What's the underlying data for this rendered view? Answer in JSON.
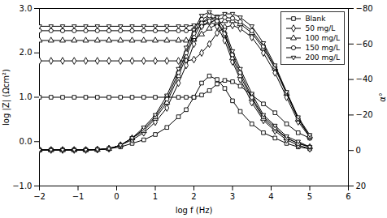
{
  "chart_data": {
    "type": "line",
    "xlabel": "log f (Hz)",
    "ylabel": "log |Z| (Ωcm²)",
    "y2label": "α°",
    "xlim": [
      -2,
      6
    ],
    "ylim": [
      -1,
      3
    ],
    "y2lim": [
      20,
      -80
    ],
    "xticks": [
      -2,
      -1,
      0,
      1,
      2,
      3,
      4,
      5,
      6
    ],
    "yticks": [
      -1,
      0,
      1,
      2,
      3
    ],
    "y2ticks": [
      20,
      0,
      -20,
      -40,
      -60,
      -80
    ],
    "grid": false,
    "legend": "upper right",
    "x": [
      -2,
      -1.7,
      -1.4,
      -1.1,
      -0.8,
      -0.5,
      -0.2,
      0.1,
      0.4,
      0.7,
      1.0,
      1.3,
      1.6,
      1.8,
      2.0,
      2.2,
      2.4,
      2.6,
      2.8,
      3.0,
      3.2,
      3.5,
      3.8,
      4.1,
      4.4,
      4.7,
      5.0
    ],
    "series": [
      {
        "name": "Blank",
        "color": "black",
        "marker": "square",
        "values": [
          1.0,
          1.0,
          1.0,
          1.0,
          1.0,
          1.0,
          1.0,
          1.0,
          1.0,
          1.0,
          1.0,
          1.0,
          1.0,
          1.0,
          1.0,
          1.05,
          1.15,
          1.3,
          1.38,
          1.35,
          1.25,
          1.05,
          0.85,
          0.65,
          0.4,
          0.2,
          0.08
        ]
      },
      {
        "name": "50 mg/L",
        "color": "black",
        "marker": "diamond",
        "values": [
          1.82,
          1.82,
          1.82,
          1.82,
          1.82,
          1.82,
          1.82,
          1.82,
          1.82,
          1.82,
          1.82,
          1.82,
          1.82,
          1.82,
          1.85,
          2.0,
          2.2,
          2.45,
          2.58,
          2.62,
          2.55,
          2.35,
          2.0,
          1.55,
          1.0,
          0.45,
          0.1
        ]
      },
      {
        "name": "100 mg/L",
        "color": "black",
        "marker": "triangle",
        "values": [
          2.28,
          2.28,
          2.28,
          2.28,
          2.28,
          2.28,
          2.28,
          2.28,
          2.28,
          2.28,
          2.28,
          2.28,
          2.28,
          2.28,
          2.3,
          2.42,
          2.55,
          2.65,
          2.72,
          2.72,
          2.65,
          2.45,
          2.1,
          1.65,
          1.08,
          0.5,
          0.12
        ]
      },
      {
        "name": "150 mg/L",
        "color": "black",
        "marker": "circle",
        "values": [
          2.5,
          2.5,
          2.5,
          2.5,
          2.5,
          2.5,
          2.5,
          2.5,
          2.5,
          2.5,
          2.5,
          2.5,
          2.5,
          2.5,
          2.52,
          2.6,
          2.68,
          2.75,
          2.8,
          2.78,
          2.7,
          2.5,
          2.15,
          1.68,
          1.1,
          0.52,
          0.12
        ]
      },
      {
        "name": "200 mg/L",
        "color": "black",
        "marker": "triangle-down",
        "values": [
          2.6,
          2.6,
          2.6,
          2.6,
          2.6,
          2.6,
          2.6,
          2.6,
          2.6,
          2.6,
          2.6,
          2.6,
          2.6,
          2.6,
          2.62,
          2.68,
          2.75,
          2.82,
          2.88,
          2.88,
          2.8,
          2.6,
          2.22,
          1.72,
          1.12,
          0.55,
          0.15
        ]
      },
      {
        "name": "Blank",
        "axis": "y2",
        "color": "black",
        "marker": "square",
        "values": [
          -0.3,
          -0.3,
          -0.3,
          -0.3,
          -0.3,
          -0.5,
          -1,
          -2,
          -4,
          -6,
          -9,
          -13,
          -19,
          -23,
          -30,
          -38,
          -42,
          -40,
          -35,
          -28,
          -22,
          -15,
          -10,
          -7,
          -4,
          -2,
          -1
        ]
      },
      {
        "name": "50 mg/L",
        "axis": "y2",
        "color": "black",
        "marker": "diamond",
        "values": [
          -0.3,
          -0.3,
          -0.3,
          -0.3,
          -0.3,
          -0.5,
          -1,
          -3,
          -6,
          -10,
          -16,
          -24,
          -38,
          -48,
          -60,
          -70,
          -73,
          -70,
          -62,
          -50,
          -40,
          -27,
          -17,
          -11,
          -6,
          -3,
          -1
        ]
      },
      {
        "name": "100 mg/L",
        "axis": "y2",
        "color": "black",
        "marker": "triangle",
        "values": [
          -0.3,
          -0.3,
          -0.3,
          -0.3,
          -0.3,
          -0.5,
          -1,
          -3,
          -7,
          -11,
          -18,
          -27,
          -42,
          -53,
          -64,
          -72,
          -75,
          -72,
          -65,
          -52,
          -42,
          -29,
          -18,
          -12,
          -7,
          -4,
          -2
        ]
      },
      {
        "name": "150 mg/L",
        "axis": "y2",
        "color": "black",
        "marker": "circle",
        "values": [
          -0.3,
          -0.3,
          -0.3,
          -0.3,
          -0.3,
          -0.5,
          -1,
          -3,
          -7,
          -12,
          -19,
          -29,
          -44,
          -55,
          -66,
          -74,
          -76,
          -73,
          -66,
          -54,
          -44,
          -30,
          -19,
          -13,
          -7,
          -4,
          -2
        ]
      },
      {
        "name": "200 mg/L",
        "axis": "y2",
        "color": "black",
        "marker": "triangle-down",
        "values": [
          -0.3,
          -0.3,
          -0.3,
          -0.3,
          -0.3,
          -0.5,
          -1,
          -3,
          -7,
          -13,
          -20,
          -31,
          -46,
          -58,
          -68,
          -76,
          -78,
          -75,
          -68,
          -56,
          -46,
          -32,
          -20,
          -14,
          -8,
          -5,
          -2
        ]
      }
    ]
  }
}
